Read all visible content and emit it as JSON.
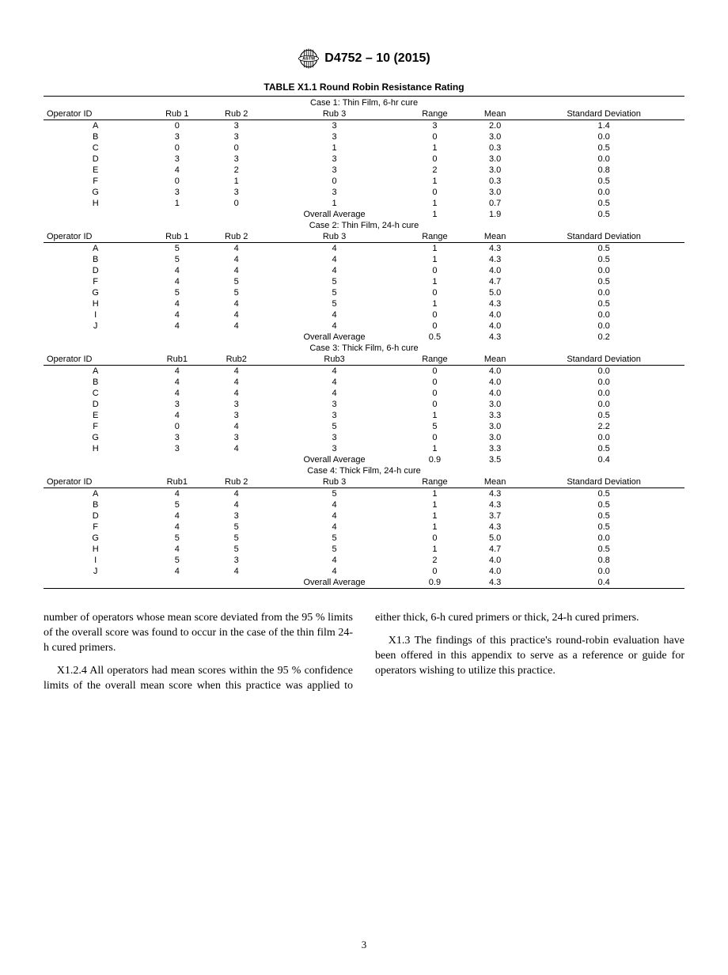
{
  "header": {
    "designation": "D4752 – 10 (2015)"
  },
  "table": {
    "title": "TABLE X1.1 Round Robin Resistance Rating",
    "cases": [
      {
        "label": "Case 1: Thin Film, 6-hr cure",
        "columns": [
          "Operator ID",
          "Rub 1",
          "Rub 2",
          "Rub 3",
          "Range",
          "Mean",
          "Standard Deviation"
        ],
        "rows": [
          [
            "A",
            "0",
            "3",
            "3",
            "3",
            "2.0",
            "1.4"
          ],
          [
            "B",
            "3",
            "3",
            "3",
            "0",
            "3.0",
            "0.0"
          ],
          [
            "C",
            "0",
            "0",
            "1",
            "1",
            "0.3",
            "0.5"
          ],
          [
            "D",
            "3",
            "3",
            "3",
            "0",
            "3.0",
            "0.0"
          ],
          [
            "E",
            "4",
            "2",
            "3",
            "2",
            "3.0",
            "0.8"
          ],
          [
            "F",
            "0",
            "1",
            "0",
            "1",
            "0.3",
            "0.5"
          ],
          [
            "G",
            "3",
            "3",
            "3",
            "0",
            "3.0",
            "0.0"
          ],
          [
            "H",
            "1",
            "0",
            "1",
            "1",
            "0.7",
            "0.5"
          ]
        ],
        "overall": [
          "Overall Average",
          "1",
          "1.9",
          "0.5"
        ]
      },
      {
        "label": "Case 2: Thin Film, 24-h cure",
        "columns": [
          "Operator ID",
          "Rub 1",
          "Rub 2",
          "Rub 3",
          "Range",
          "Mean",
          "Standard Deviation"
        ],
        "rows": [
          [
            "A",
            "5",
            "4",
            "4",
            "1",
            "4.3",
            "0.5"
          ],
          [
            "B",
            "5",
            "4",
            "4",
            "1",
            "4.3",
            "0.5"
          ],
          [
            "D",
            "4",
            "4",
            "4",
            "0",
            "4.0",
            "0.0"
          ],
          [
            "F",
            "4",
            "5",
            "5",
            "1",
            "4.7",
            "0.5"
          ],
          [
            "G",
            "5",
            "5",
            "5",
            "0",
            "5.0",
            "0.0"
          ],
          [
            "H",
            "4",
            "4",
            "5",
            "1",
            "4.3",
            "0.5"
          ],
          [
            "I",
            "4",
            "4",
            "4",
            "0",
            "4.0",
            "0.0"
          ],
          [
            "J",
            "4",
            "4",
            "4",
            "0",
            "4.0",
            "0.0"
          ]
        ],
        "overall": [
          "Overall Average",
          "0.5",
          "4.3",
          "0.2"
        ]
      },
      {
        "label": "Case 3: Thick Film, 6-h cure",
        "columns": [
          "Operator ID",
          "Rub1",
          "Rub2",
          "Rub3",
          "Range",
          "Mean",
          "Standard Deviation"
        ],
        "rows": [
          [
            "A",
            "4",
            "4",
            "4",
            "0",
            "4.0",
            "0.0"
          ],
          [
            "B",
            "4",
            "4",
            "4",
            "0",
            "4.0",
            "0.0"
          ],
          [
            "C",
            "4",
            "4",
            "4",
            "0",
            "4.0",
            "0.0"
          ],
          [
            "D",
            "3",
            "3",
            "3",
            "0",
            "3.0",
            "0.0"
          ],
          [
            "E",
            "4",
            "3",
            "3",
            "1",
            "3.3",
            "0.5"
          ],
          [
            "F",
            "0",
            "4",
            "5",
            "5",
            "3.0",
            "2.2"
          ],
          [
            "G",
            "3",
            "3",
            "3",
            "0",
            "3.0",
            "0.0"
          ],
          [
            "H",
            "3",
            "4",
            "3",
            "1",
            "3.3",
            "0.5"
          ]
        ],
        "overall": [
          "Overall Average",
          "0.9",
          "3.5",
          "0.4"
        ]
      },
      {
        "label": "Case 4: Thick Film, 24-h cure",
        "columns": [
          "Operator ID",
          "Rub1",
          "Rub 2",
          "Rub 3",
          "Range",
          "Mean",
          "Standard Deviation"
        ],
        "rows": [
          [
            "A",
            "4",
            "4",
            "5",
            "1",
            "4.3",
            "0.5"
          ],
          [
            "B",
            "5",
            "4",
            "4",
            "1",
            "4.3",
            "0.5"
          ],
          [
            "D",
            "4",
            "3",
            "4",
            "1",
            "3.7",
            "0.5"
          ],
          [
            "F",
            "4",
            "5",
            "4",
            "1",
            "4.3",
            "0.5"
          ],
          [
            "G",
            "5",
            "5",
            "5",
            "0",
            "5.0",
            "0.0"
          ],
          [
            "H",
            "4",
            "5",
            "5",
            "1",
            "4.7",
            "0.5"
          ],
          [
            "I",
            "5",
            "3",
            "4",
            "2",
            "4.0",
            "0.8"
          ],
          [
            "J",
            "4",
            "4",
            "4",
            "0",
            "4.0",
            "0.0"
          ]
        ],
        "overall": [
          "Overall Average",
          "0.9",
          "4.3",
          "0.4"
        ]
      }
    ]
  },
  "paragraphs": {
    "p1": "number of operators whose mean score deviated from the 95 % limits of the overall score was found to occur in the case of the thin film 24-h cured primers.",
    "p2": "X1.2.4 All operators had mean scores within the 95 % confidence limits of the overall mean score when this practice was applied to either thick, 6-h cured primers or thick, 24-h cured primers.",
    "p3": "X1.3 The findings of this practice's round-robin evaluation have been offered in this appendix to serve as a reference or guide for operators wishing to utilize this practice."
  },
  "page_number": "3"
}
